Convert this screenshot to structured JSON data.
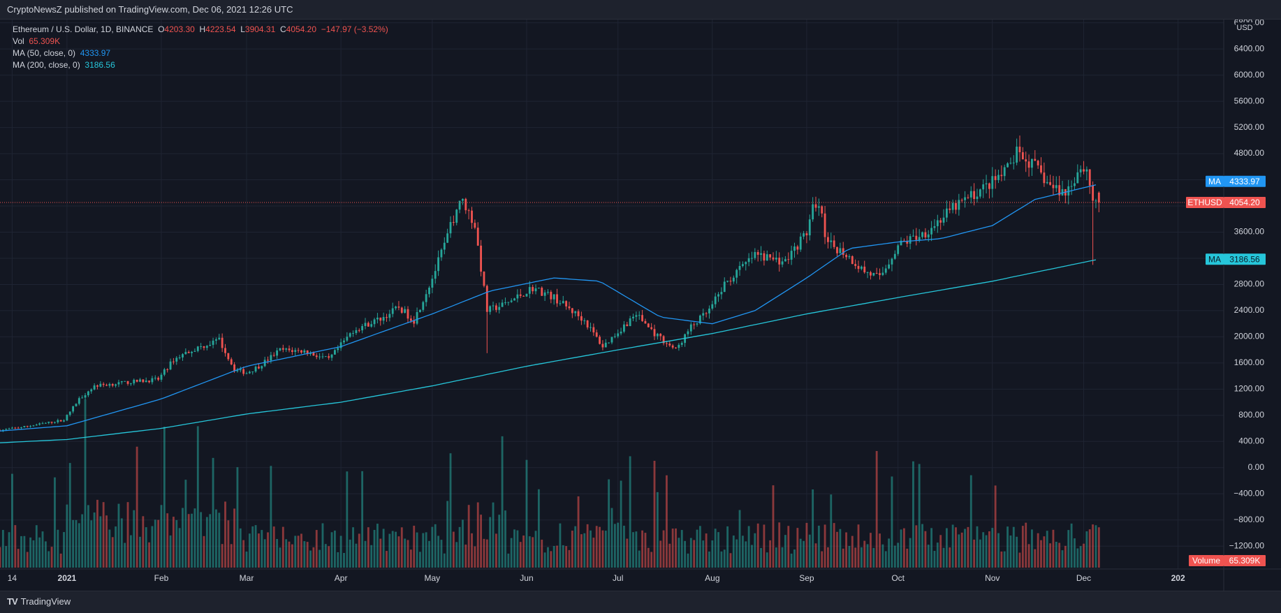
{
  "header": {
    "published": "CryptoNewsZ published on TradingView.com, Dec 06, 2021 12:26 UTC"
  },
  "legend": {
    "symbol": "Ethereum / U.S. Dollar, 1D, BINANCE",
    "open_label": "O",
    "open": "4203.30",
    "high_label": "H",
    "high": "4223.54",
    "low_label": "L",
    "low": "3904.31",
    "close_label": "C",
    "close": "4054.20",
    "change": "−147.97 (−3.52%)",
    "vol_label": "Vol",
    "vol": "65.309K",
    "ma50_label": "MA (50, close, 0)",
    "ma50": "4333.97",
    "ma200_label": "MA (200, close, 0)",
    "ma200": "3186.56"
  },
  "axis_badges": {
    "ma_label": "MA",
    "ma50_value": "4333.97",
    "price_label": "ETHUSD",
    "price_value": "4054.20",
    "ma200_value": "3186.56",
    "volume_label": "Volume",
    "volume_value": "65.309K"
  },
  "footer": {
    "brand": "TradingView",
    "logo": "TV"
  },
  "colors": {
    "background": "#131722",
    "grid": "#1f2433",
    "up": "#26a69a",
    "down": "#ef5350",
    "ma50": "#2196f3",
    "ma200": "#26c6da",
    "text": "#d1d4dc"
  },
  "chart_data": {
    "type": "candlestick",
    "title": "Ethereum / U.S. Dollar, 1D, BINANCE",
    "y_unit": "USD",
    "y_ticks": [
      "6800.00",
      "6400.00",
      "6000.00",
      "5600.00",
      "5200.00",
      "4800.00",
      "4400.00",
      "4000.00",
      "3600.00",
      "3200.00",
      "2800.00",
      "2400.00",
      "2000.00",
      "1600.00",
      "1200.00",
      "800.00",
      "400.00",
      "0.00",
      "−400.00",
      "−800.00",
      "−1200.00"
    ],
    "y_tick_values": [
      6800,
      6400,
      6000,
      5600,
      5200,
      4800,
      4400,
      4000,
      3600,
      3200,
      2800,
      2400,
      2000,
      1600,
      1200,
      800,
      400,
      0,
      -400,
      -800,
      -1200
    ],
    "x_ticks": [
      "14",
      "2021",
      "Feb",
      "Mar",
      "Apr",
      "May",
      "Jun",
      "Jul",
      "Aug",
      "Sep",
      "Oct",
      "Nov",
      "Dec",
      "202"
    ],
    "x_tick_dates": [
      "2020-12-14",
      "2021-01-01",
      "2021-02-01",
      "2021-03-01",
      "2021-04-01",
      "2021-05-01",
      "2021-06-01",
      "2021-07-01",
      "2021-08-01",
      "2021-09-01",
      "2021-10-01",
      "2021-11-01",
      "2021-12-01",
      "2022-01-01"
    ],
    "x_range": [
      "2020-12-10",
      "2022-01-16"
    ],
    "y_range": [
      -1550,
      6850
    ],
    "last_date": "2021-12-06",
    "ohlc_last": {
      "open": 4203.3,
      "high": 4223.54,
      "low": 3904.31,
      "close": 4054.2
    },
    "close_anchors": [
      [
        "2020-12-10",
        570
      ],
      [
        "2020-12-20",
        640
      ],
      [
        "2020-12-31",
        730
      ],
      [
        "2021-01-05",
        1050
      ],
      [
        "2021-01-10",
        1250
      ],
      [
        "2021-01-20",
        1300
      ],
      [
        "2021-01-31",
        1350
      ],
      [
        "2021-02-05",
        1650
      ],
      [
        "2021-02-10",
        1780
      ],
      [
        "2021-02-20",
        1950
      ],
      [
        "2021-02-25",
        1500
      ],
      [
        "2021-03-01",
        1450
      ],
      [
        "2021-03-05",
        1550
      ],
      [
        "2021-03-12",
        1800
      ],
      [
        "2021-03-20",
        1780
      ],
      [
        "2021-03-28",
        1650
      ],
      [
        "2021-04-05",
        2100
      ],
      [
        "2021-04-15",
        2300
      ],
      [
        "2021-04-20",
        2450
      ],
      [
        "2021-04-25",
        2250
      ],
      [
        "2021-05-01",
        2900
      ],
      [
        "2021-05-05",
        3400
      ],
      [
        "2021-05-10",
        4100
      ],
      [
        "2021-05-12",
        4000
      ],
      [
        "2021-05-15",
        3700
      ],
      [
        "2021-05-19",
        2400
      ],
      [
        "2021-05-25",
        2500
      ],
      [
        "2021-06-03",
        2750
      ],
      [
        "2021-06-10",
        2600
      ],
      [
        "2021-06-20",
        2250
      ],
      [
        "2021-06-26",
        1850
      ],
      [
        "2021-07-07",
        2350
      ],
      [
        "2021-07-13",
        2050
      ],
      [
        "2021-07-20",
        1800
      ],
      [
        "2021-07-25",
        2150
      ],
      [
        "2021-07-31",
        2400
      ],
      [
        "2021-08-05",
        2800
      ],
      [
        "2021-08-15",
        3250
      ],
      [
        "2021-08-25",
        3150
      ],
      [
        "2021-09-01",
        3600
      ],
      [
        "2021-09-03",
        3950
      ],
      [
        "2021-09-06",
        3900
      ],
      [
        "2021-09-07",
        3450
      ],
      [
        "2021-09-13",
        3300
      ],
      [
        "2021-09-20",
        3000
      ],
      [
        "2021-09-25",
        2900
      ],
      [
        "2021-10-01",
        3400
      ],
      [
        "2021-10-10",
        3600
      ],
      [
        "2021-10-15",
        3800
      ],
      [
        "2021-10-20",
        4000
      ],
      [
        "2021-10-30",
        4300
      ],
      [
        "2021-11-05",
        4500
      ],
      [
        "2021-11-09",
        4800
      ],
      [
        "2021-11-15",
        4600
      ],
      [
        "2021-11-20",
        4300
      ],
      [
        "2021-11-25",
        4200
      ],
      [
        "2021-11-30",
        4600
      ],
      [
        "2021-12-02",
        4550
      ],
      [
        "2021-12-04",
        4100
      ],
      [
        "2021-12-06",
        4054
      ]
    ],
    "ma50_anchors": [
      [
        "2020-12-10",
        560
      ],
      [
        "2021-01-01",
        640
      ],
      [
        "2021-02-01",
        1050
      ],
      [
        "2021-03-01",
        1550
      ],
      [
        "2021-04-01",
        1850
      ],
      [
        "2021-05-01",
        2350
      ],
      [
        "2021-05-20",
        2700
      ],
      [
        "2021-06-10",
        2900
      ],
      [
        "2021-06-25",
        2850
      ],
      [
        "2021-07-15",
        2300
      ],
      [
        "2021-08-01",
        2200
      ],
      [
        "2021-08-15",
        2400
      ],
      [
        "2021-09-01",
        2900
      ],
      [
        "2021-09-15",
        3350
      ],
      [
        "2021-10-01",
        3450
      ],
      [
        "2021-10-15",
        3500
      ],
      [
        "2021-11-01",
        3700
      ],
      [
        "2021-11-15",
        4100
      ],
      [
        "2021-12-06",
        4334
      ]
    ],
    "ma200_anchors": [
      [
        "2020-12-10",
        380
      ],
      [
        "2021-01-01",
        430
      ],
      [
        "2021-02-01",
        600
      ],
      [
        "2021-03-01",
        820
      ],
      [
        "2021-04-01",
        1000
      ],
      [
        "2021-05-01",
        1250
      ],
      [
        "2021-06-01",
        1550
      ],
      [
        "2021-07-01",
        1800
      ],
      [
        "2021-08-01",
        2050
      ],
      [
        "2021-09-01",
        2350
      ],
      [
        "2021-10-01",
        2600
      ],
      [
        "2021-11-01",
        2850
      ],
      [
        "2021-12-06",
        3187
      ]
    ],
    "volume_note": "Volume histogram drawn in lower pane, scaled independently"
  }
}
